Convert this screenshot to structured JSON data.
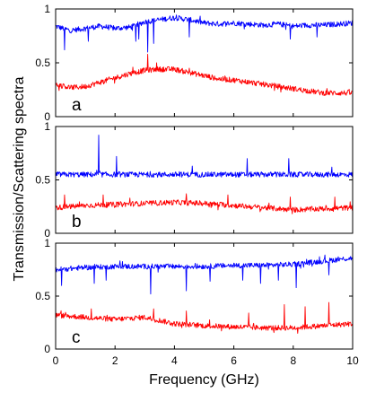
{
  "chart_data": {
    "type": "line",
    "xlabel": "Frequency (GHz)",
    "ylabel": "Transmission/Scattering spectra",
    "xlim": [
      0,
      10
    ],
    "xticks": [
      "0",
      "2",
      "4",
      "6",
      "8",
      "10"
    ],
    "grid": false,
    "series_colors": {
      "blue": "#0000ff",
      "red": "#ff0000"
    },
    "panels": [
      {
        "letter": "a",
        "ylim": [
          0,
          1
        ],
        "yticks": [
          "0",
          "0.5",
          "1"
        ],
        "blue": {
          "x": [
            0,
            0.5,
            1,
            1.5,
            2,
            2.5,
            3,
            3.5,
            4,
            4.5,
            5,
            5.5,
            6,
            6.5,
            7,
            7.5,
            8,
            8.5,
            9,
            9.5,
            10
          ],
          "y": [
            0.84,
            0.8,
            0.82,
            0.84,
            0.82,
            0.83,
            0.88,
            0.9,
            0.92,
            0.9,
            0.87,
            0.86,
            0.87,
            0.86,
            0.85,
            0.86,
            0.84,
            0.85,
            0.85,
            0.86,
            0.87
          ],
          "dips": [
            [
              0.3,
              0.62
            ],
            [
              1.1,
              0.7
            ],
            [
              2.7,
              0.7
            ],
            [
              2.8,
              0.72
            ],
            [
              3.1,
              0.6
            ],
            [
              3.3,
              0.68
            ],
            [
              4.5,
              0.74
            ],
            [
              7.9,
              0.72
            ],
            [
              8.8,
              0.74
            ]
          ]
        },
        "red": {
          "x": [
            0,
            0.5,
            1,
            1.5,
            2,
            2.5,
            3,
            3.5,
            4,
            4.5,
            5,
            5.5,
            6,
            6.5,
            7,
            7.5,
            8,
            8.5,
            9,
            9.5,
            10
          ],
          "y": [
            0.3,
            0.27,
            0.28,
            0.32,
            0.36,
            0.4,
            0.43,
            0.44,
            0.44,
            0.41,
            0.38,
            0.35,
            0.34,
            0.32,
            0.3,
            0.28,
            0.26,
            0.24,
            0.22,
            0.22,
            0.22
          ],
          "peaks": [
            [
              3.1,
              0.58
            ],
            [
              3.4,
              0.5
            ],
            [
              2.6,
              0.46
            ],
            [
              4.5,
              0.45
            ]
          ]
        }
      },
      {
        "letter": "b",
        "ylim": [
          0,
          1
        ],
        "yticks": [
          "0",
          "0.5",
          "1"
        ],
        "blue": {
          "x": [
            0,
            1,
            2,
            3,
            4,
            5,
            6,
            7,
            8,
            9,
            10
          ],
          "y": [
            0.55,
            0.55,
            0.55,
            0.55,
            0.55,
            0.55,
            0.55,
            0.55,
            0.55,
            0.55,
            0.55
          ],
          "peaks": [
            [
              1.45,
              0.92
            ],
            [
              2.05,
              0.72
            ],
            [
              4.6,
              0.63
            ],
            [
              6.45,
              0.7
            ],
            [
              7.85,
              0.7
            ],
            [
              9.3,
              0.62
            ]
          ]
        },
        "red": {
          "x": [
            0,
            1,
            2,
            3,
            4,
            5,
            6,
            7,
            8,
            9,
            10
          ],
          "y": [
            0.24,
            0.26,
            0.27,
            0.28,
            0.29,
            0.28,
            0.26,
            0.24,
            0.22,
            0.23,
            0.24
          ],
          "peaks": [
            [
              0.3,
              0.36
            ],
            [
              1.6,
              0.36
            ],
            [
              2.5,
              0.33
            ],
            [
              4.4,
              0.37
            ],
            [
              5.8,
              0.36
            ],
            [
              7.9,
              0.34
            ],
            [
              9.4,
              0.34
            ]
          ]
        }
      },
      {
        "letter": "c",
        "ylim": [
          0,
          1
        ],
        "yticks": [
          "0",
          "0.5",
          "1"
        ],
        "blue": {
          "x": [
            0,
            1,
            2,
            3,
            4,
            5,
            6,
            7,
            8,
            9,
            10
          ],
          "y": [
            0.75,
            0.77,
            0.78,
            0.78,
            0.78,
            0.78,
            0.79,
            0.79,
            0.8,
            0.83,
            0.86
          ],
          "dips": [
            [
              0.2,
              0.6
            ],
            [
              1.3,
              0.62
            ],
            [
              1.7,
              0.65
            ],
            [
              3.2,
              0.52
            ],
            [
              4.4,
              0.55
            ],
            [
              5.2,
              0.64
            ],
            [
              6.3,
              0.65
            ],
            [
              6.9,
              0.62
            ],
            [
              7.5,
              0.65
            ],
            [
              8.1,
              0.58
            ],
            [
              9.2,
              0.7
            ]
          ]
        },
        "red": {
          "x": [
            0,
            1,
            2,
            3,
            4,
            5,
            6,
            7,
            8,
            9,
            10
          ],
          "y": [
            0.32,
            0.3,
            0.28,
            0.3,
            0.24,
            0.22,
            0.21,
            0.2,
            0.2,
            0.22,
            0.24
          ],
          "peaks": [
            [
              1.2,
              0.38
            ],
            [
              3.3,
              0.38
            ],
            [
              4.4,
              0.36
            ],
            [
              6.5,
              0.34
            ],
            [
              7.7,
              0.42
            ],
            [
              8.4,
              0.4
            ],
            [
              9.2,
              0.44
            ]
          ]
        }
      }
    ]
  }
}
